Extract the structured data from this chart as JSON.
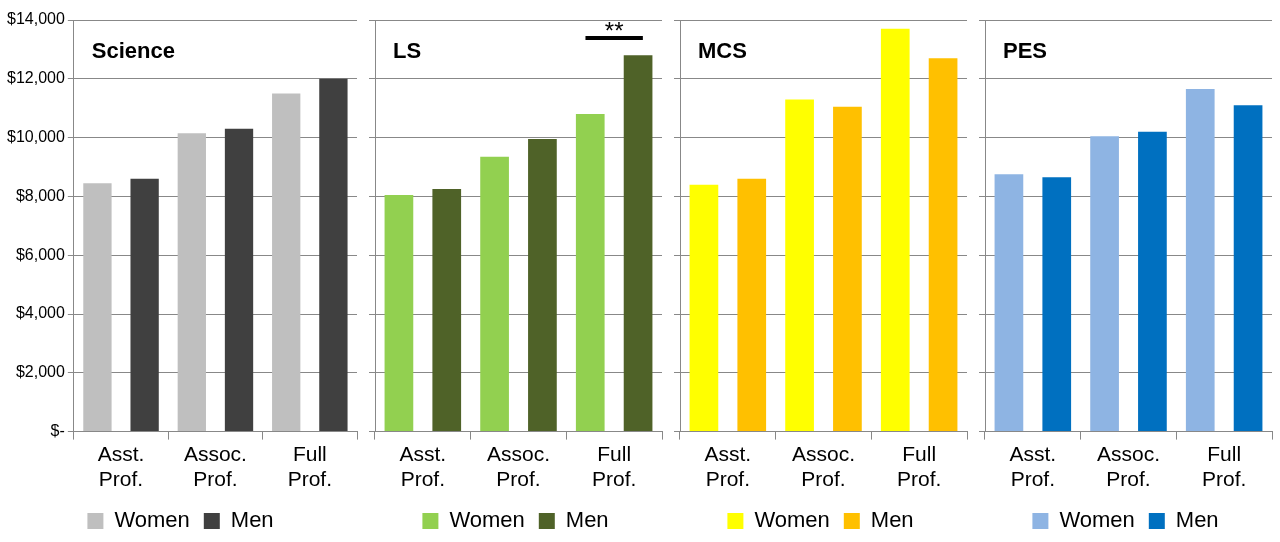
{
  "chart_data": [
    {
      "type": "bar",
      "title": "Science",
      "categories": [
        "Asst. Prof.",
        "Assoc. Prof.",
        "Full Prof."
      ],
      "series": [
        {
          "name": "Women",
          "color": "#bfbfbf",
          "values": [
            8450,
            10150,
            11500
          ]
        },
        {
          "name": "Men",
          "color": "#404040",
          "values": [
            8600,
            10300,
            12000
          ]
        }
      ],
      "ylim": [
        0,
        14000
      ],
      "yticks": [
        {
          "value": 0,
          "label": "$-"
        },
        {
          "value": 2000,
          "label": "$2,000"
        },
        {
          "value": 4000,
          "label": "$4,000"
        },
        {
          "value": 6000,
          "label": "$6,000"
        },
        {
          "value": 8000,
          "label": "$8,000"
        },
        {
          "value": 10000,
          "label": "$10,000"
        },
        {
          "value": 12000,
          "label": "$12,000"
        },
        {
          "value": 14000,
          "label": "$14,000"
        }
      ],
      "grid": "y",
      "legend": "bottom"
    },
    {
      "type": "bar",
      "title": "LS",
      "categories": [
        "Asst. Prof.",
        "Assoc. Prof.",
        "Full Prof."
      ],
      "series": [
        {
          "name": "Women",
          "color": "#92d050",
          "values": [
            8050,
            9350,
            10800
          ]
        },
        {
          "name": "Men",
          "color": "#4f6228",
          "values": [
            8250,
            9950,
            12800
          ]
        }
      ],
      "ylim": [
        0,
        14000
      ],
      "yticks": [
        0,
        2000,
        4000,
        6000,
        8000,
        10000,
        12000,
        14000
      ],
      "grid": "y",
      "legend": "bottom",
      "tick_labels": "x",
      "annotations": [
        "**"
      ]
    },
    {
      "type": "bar",
      "title": "MCS",
      "categories": [
        "Asst. Prof.",
        "Assoc. Prof.",
        "Full Prof."
      ],
      "series": [
        {
          "name": "Women",
          "color": "#ffff00",
          "values": [
            8400,
            11300,
            13700
          ]
        },
        {
          "name": "Men",
          "color": "#ffc000",
          "values": [
            8600,
            11050,
            12700
          ]
        }
      ],
      "ylim": [
        0,
        14000
      ],
      "yticks": [
        0,
        2000,
        4000,
        6000,
        8000,
        10000,
        12000,
        14000
      ],
      "grid": "y",
      "legend": "bottom",
      "tick_labels": "x"
    },
    {
      "type": "bar",
      "title": "PES",
      "categories": [
        "Asst. Prof.",
        "Assoc. Prof.",
        "Full Prof."
      ],
      "series": [
        {
          "name": "Women",
          "color": "#8eb4e3",
          "values": [
            8750,
            10050,
            11650
          ]
        },
        {
          "name": "Men",
          "color": "#0070c0",
          "values": [
            8650,
            10200,
            11100
          ]
        }
      ],
      "ylim": [
        0,
        14000
      ],
      "yticks": [
        0,
        2000,
        4000,
        6000,
        8000,
        10000,
        12000,
        14000
      ],
      "grid": "y",
      "legend": "bottom",
      "tick_labels": "x"
    }
  ]
}
